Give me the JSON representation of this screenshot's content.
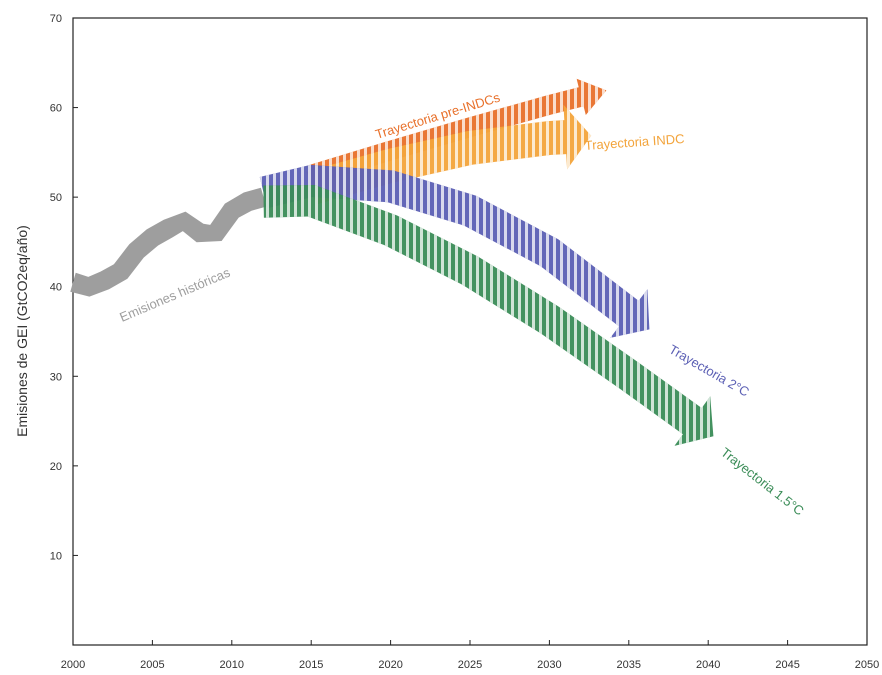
{
  "chart_data": {
    "type": "area",
    "title": "",
    "xlabel": "",
    "ylabel": "Emisiones de GEI (GtCO2eq/año)",
    "xlim": [
      2000,
      2050
    ],
    "ylim": [
      0,
      70
    ],
    "x_ticks": [
      "2000",
      "2005",
      "2010",
      "2015",
      "2020",
      "2025",
      "2030",
      "2035",
      "2040",
      "2045",
      "2050"
    ],
    "y_ticks": [
      "10",
      "20",
      "30",
      "40",
      "50",
      "60",
      "70"
    ],
    "grid": false,
    "series": [
      {
        "name": "Emisiones históricas",
        "color": "#9e9e9e",
        "style": "solid",
        "points": [
          [
            2000,
            40.5
          ],
          [
            2001,
            40
          ],
          [
            2002,
            40.7
          ],
          [
            2003,
            41.7
          ],
          [
            2004,
            44
          ],
          [
            2005,
            45.5
          ],
          [
            2006,
            46.5
          ],
          [
            2007,
            47.3
          ],
          [
            2008,
            46
          ],
          [
            2009,
            46
          ],
          [
            2010,
            48.5
          ],
          [
            2011,
            49.5
          ],
          [
            2012,
            50
          ]
        ],
        "half_width": 1.1
      },
      {
        "name": "Trayectoria pre-INDCs",
        "color": "#e8702a",
        "style": "hatched",
        "points": [
          [
            2015,
            52.5
          ],
          [
            2020,
            55.2
          ],
          [
            2025,
            57.8
          ],
          [
            2030,
            60.3
          ],
          [
            2032,
            61.2
          ]
        ],
        "half_width": 1.1
      },
      {
        "name": "Trayectoria INDC",
        "color": "#f3a43b",
        "style": "hatched",
        "points": [
          [
            2015,
            51
          ],
          [
            2020,
            53.5
          ],
          [
            2025,
            55.5
          ],
          [
            2030,
            56.6
          ],
          [
            2031,
            56.7
          ]
        ],
        "half_width": 1.9
      },
      {
        "name": "Trayectoria 2°C",
        "color": "#5b5fb4",
        "style": "hatched",
        "points": [
          [
            2012,
            50.5
          ],
          [
            2015,
            51.8
          ],
          [
            2020,
            51.2
          ],
          [
            2025,
            48.5
          ],
          [
            2030,
            43.8
          ],
          [
            2035,
            37
          ]
        ],
        "half_width": 1.8
      },
      {
        "name": "Trayectoria 1.5°C",
        "color": "#3a8c57",
        "style": "hatched",
        "points": [
          [
            2012,
            49.5
          ],
          [
            2015,
            49.6
          ],
          [
            2020,
            46.3
          ],
          [
            2025,
            41.8
          ],
          [
            2030,
            36.3
          ],
          [
            2035,
            30.1
          ],
          [
            2039,
            25
          ]
        ],
        "half_width": 1.8
      }
    ],
    "annotations": {
      "historicas": "Emisiones históricas",
      "pre_indc": "Trayectoria pre-INDCs",
      "indc": "Trayectoria INDC",
      "dos_c": "Trayectoria 2°C",
      "uno_cinco_c": "Trayectoria 1.5°C"
    }
  }
}
